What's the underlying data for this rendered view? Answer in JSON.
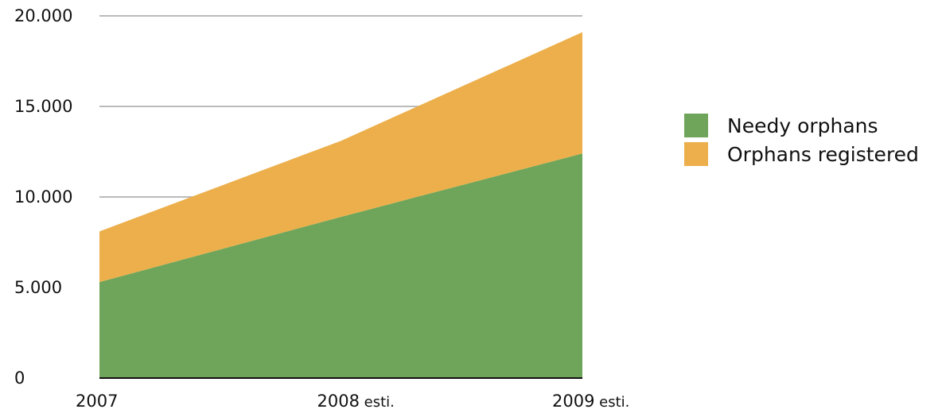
{
  "chart_data": {
    "type": "area",
    "stacked": true,
    "x": [
      "2007",
      "2008",
      "2009"
    ],
    "x_tick_labels": [
      {
        "year": "2007",
        "suffix": ""
      },
      {
        "year": "2008",
        "suffix": "esti."
      },
      {
        "year": "2009",
        "suffix": "esti."
      }
    ],
    "series": [
      {
        "name": "Needy orphans",
        "values": [
          5300,
          8900,
          12400
        ],
        "color": "#6ea55a"
      },
      {
        "name": "Orphans registered",
        "values": [
          2800,
          4200,
          6700
        ],
        "color": "#ecaf4b"
      }
    ],
    "y_ticks": [
      "0",
      "5.000",
      "10.000",
      "15.000",
      "20.000"
    ],
    "y_tick_values": [
      0,
      5000,
      10000,
      15000,
      20000
    ],
    "ylim": [
      0,
      20000
    ],
    "grid": true,
    "grid_color": "#bbbbbb",
    "legend_position": "right",
    "title": "",
    "xlabel": "",
    "ylabel": ""
  }
}
